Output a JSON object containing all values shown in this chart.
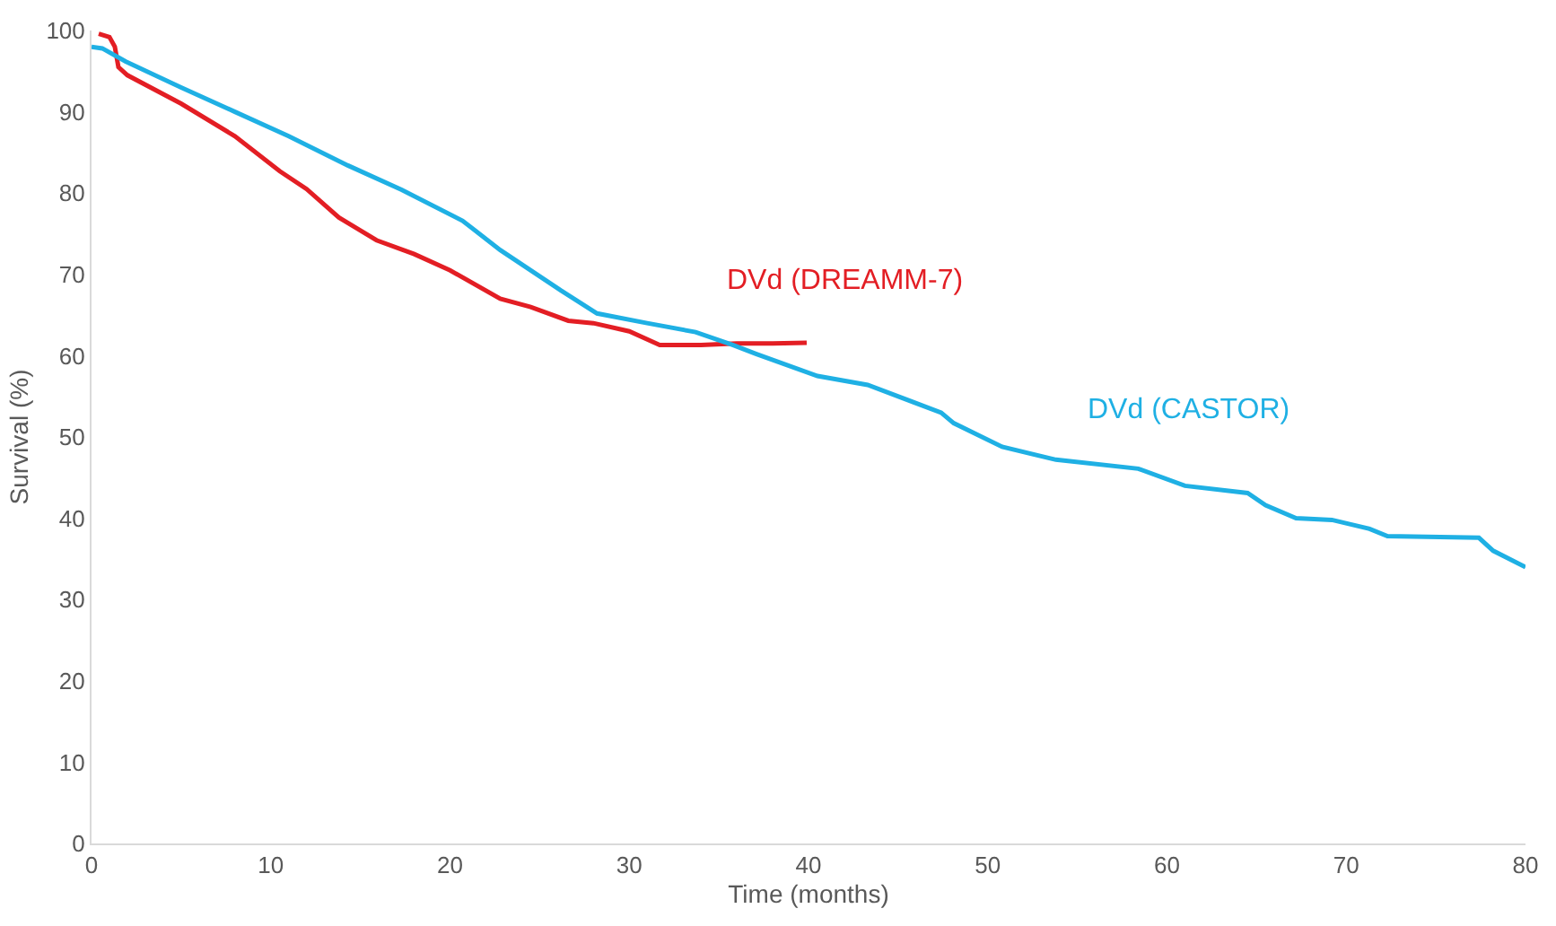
{
  "chart_data": {
    "type": "line",
    "xlabel": "Time (months)",
    "ylabel": "Survival (%)",
    "xlim": [
      0,
      80
    ],
    "xticks": [
      0,
      10,
      20,
      30,
      40,
      50,
      60,
      70,
      80
    ],
    "ylim": [
      0,
      100
    ],
    "yticks": [
      0,
      10,
      20,
      30,
      40,
      50,
      60,
      70,
      80,
      90,
      100
    ],
    "grid": false,
    "legend": false,
    "marker": "none",
    "line_style": "solid",
    "series": [
      {
        "name": "DVd (DREAMM-7)",
        "color": "#e31e24",
        "x": [
          0.4,
          1.0,
          1.3,
          1.5,
          2,
          5,
          8,
          10.5,
          12,
          13.8,
          15.9,
          18,
          20,
          22.8,
          24.5,
          26.6,
          28,
          30,
          31.7,
          34,
          36,
          38,
          39.9
        ],
        "values": [
          99.6,
          99.2,
          98,
          95.5,
          94.5,
          91,
          87,
          82.7,
          80.5,
          77,
          74.2,
          72.5,
          70.5,
          67,
          66,
          64.3,
          64,
          63,
          61.3,
          61.3,
          61.5,
          61.5,
          61.6
        ]
      },
      {
        "name": "DVd (CASTOR)",
        "color": "#1fb0e4",
        "x": [
          0,
          0.6,
          1.9,
          5,
          8,
          11,
          14.3,
          17.3,
          20.7,
          22.8,
          26.2,
          28.2,
          31,
          33.7,
          35.8,
          37.1,
          40.5,
          43.3,
          47.4,
          48.1,
          50.8,
          53.8,
          58.4,
          61,
          64.5,
          65.5,
          67.2,
          69.2,
          71.3,
          72.3,
          77.4,
          78.2,
          80
        ],
        "values": [
          98,
          97.8,
          96.2,
          93,
          90,
          87,
          83.4,
          80.4,
          76.6,
          73,
          68,
          65.2,
          64,
          62.9,
          61.3,
          60.2,
          57.5,
          56.4,
          53,
          51.7,
          48.8,
          47.2,
          46.1,
          44,
          43.1,
          41.6,
          40,
          39.8,
          38.7,
          37.8,
          37.6,
          36,
          34
        ]
      }
    ]
  }
}
